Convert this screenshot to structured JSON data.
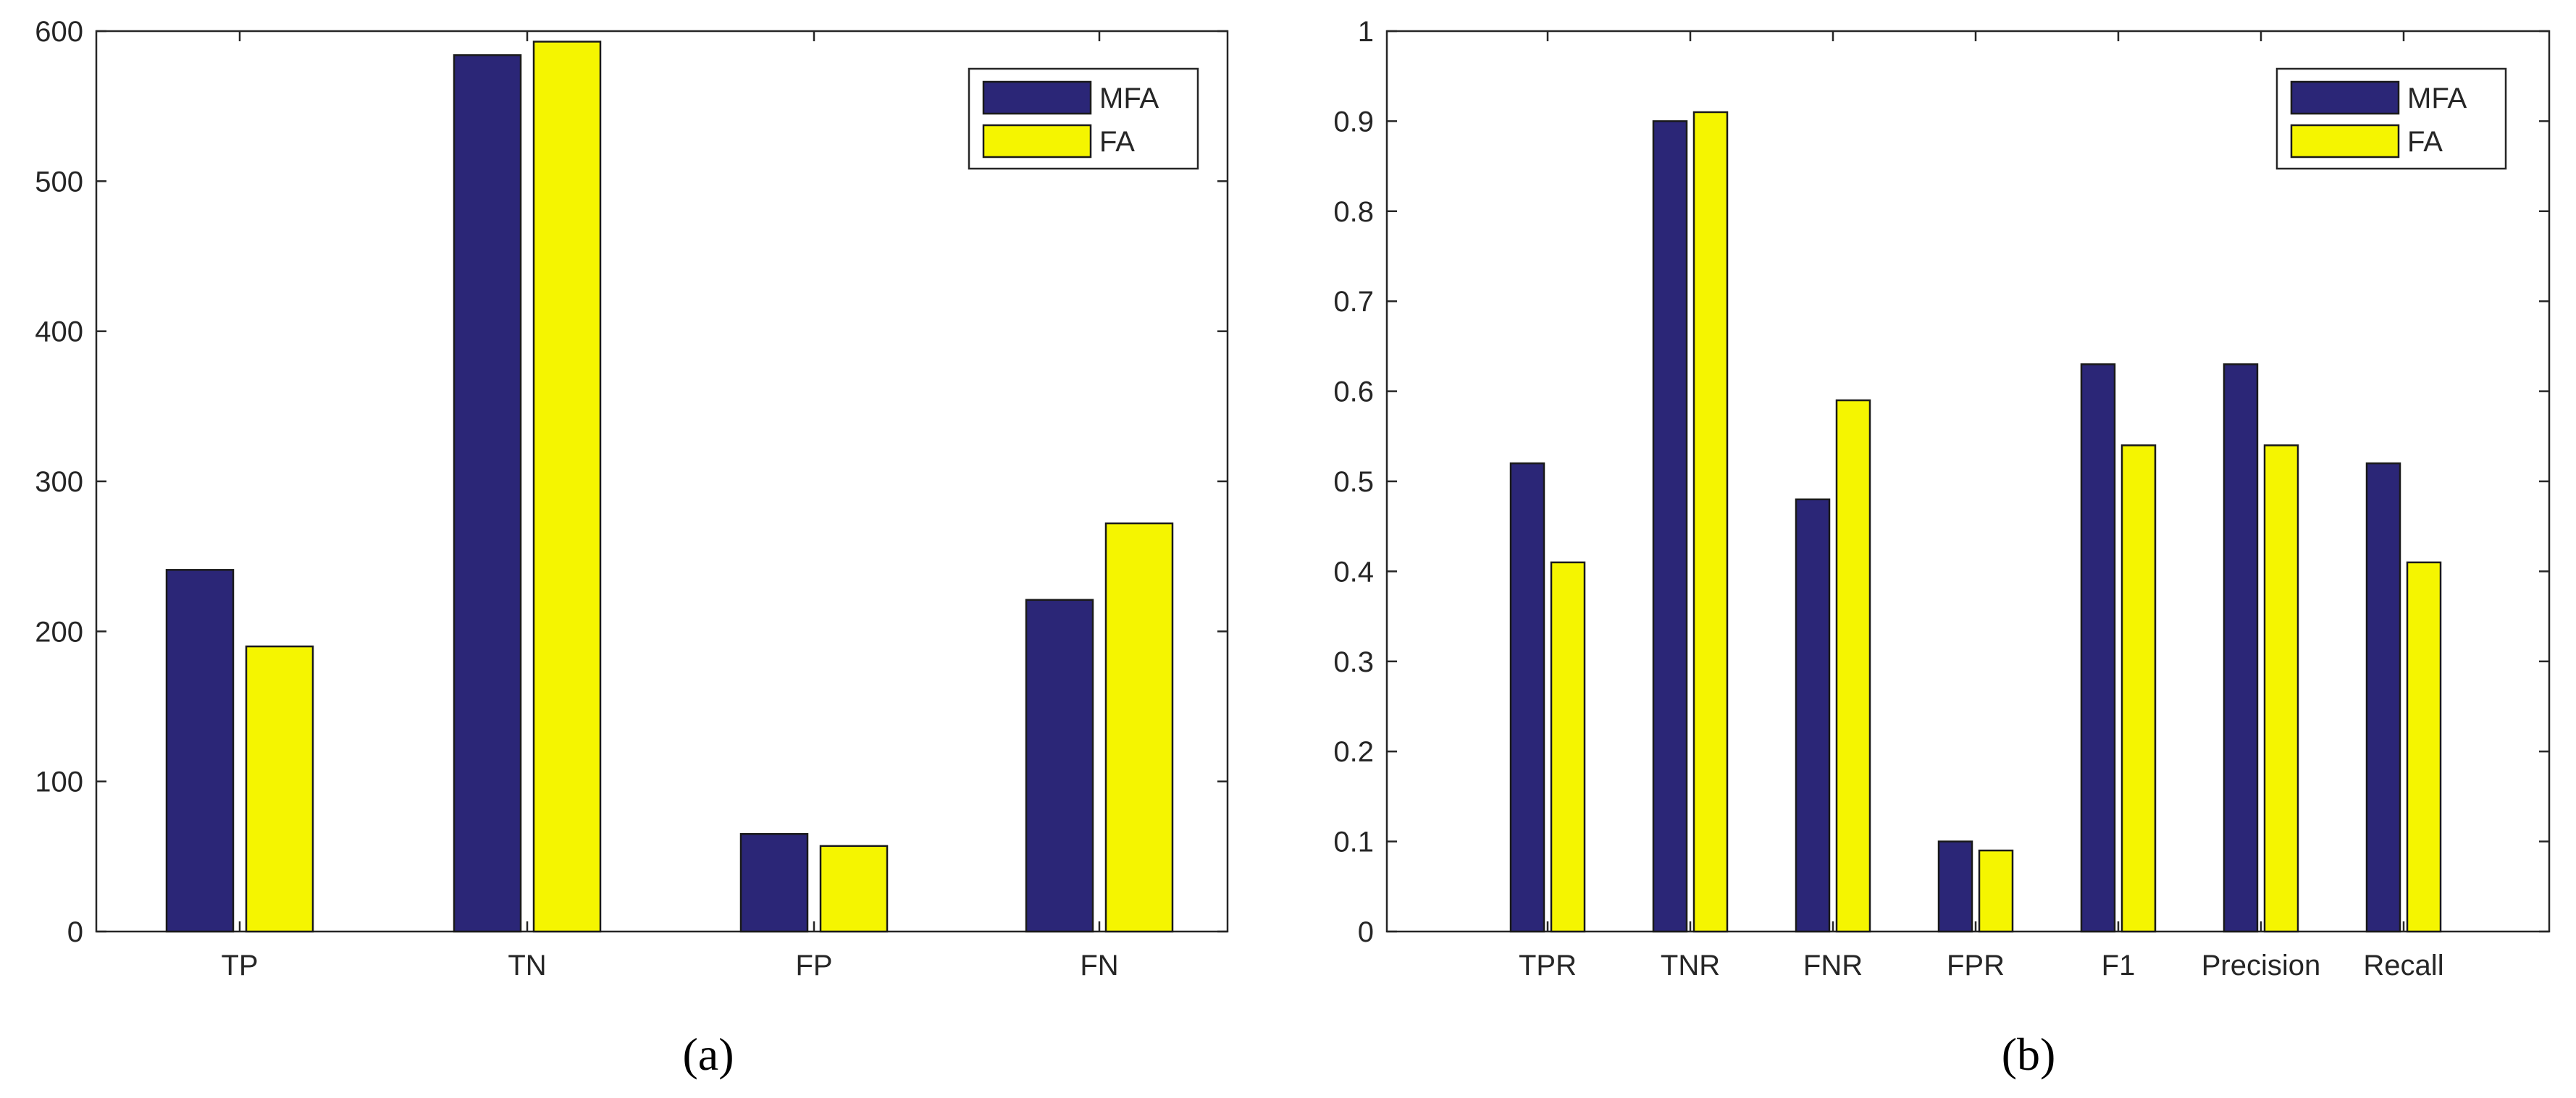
{
  "colors": {
    "mfa": "#2b2677",
    "fa": "#f5f500",
    "axis": "#262626",
    "edge": "#1a1a1a"
  },
  "chart_data": [
    {
      "type": "bar",
      "panel_label": "(a)",
      "categories": [
        "TP",
        "TN",
        "FP",
        "FN"
      ],
      "series": [
        {
          "name": "MFA",
          "values": [
            241,
            584,
            65,
            221
          ]
        },
        {
          "name": "FA",
          "values": [
            190,
            593,
            57,
            272
          ]
        }
      ],
      "ylim": [
        0,
        600
      ],
      "yticks": [
        0,
        100,
        200,
        300,
        400,
        500,
        600
      ],
      "ytick_labels": [
        "0",
        "100",
        "200",
        "300",
        "400",
        "500",
        "600"
      ],
      "legend": "top-right",
      "grid": false
    },
    {
      "type": "bar",
      "panel_label": "(b)",
      "categories": [
        "TPR",
        "TNR",
        "FNR",
        "FPR",
        "F1",
        "Precision",
        "Recall"
      ],
      "series": [
        {
          "name": "MFA",
          "values": [
            0.52,
            0.9,
            0.48,
            0.1,
            0.63,
            0.63,
            0.52
          ]
        },
        {
          "name": "FA",
          "values": [
            0.41,
            0.91,
            0.59,
            0.09,
            0.54,
            0.54,
            0.41
          ]
        }
      ],
      "ylim": [
        0,
        1
      ],
      "yticks": [
        0,
        0.1,
        0.2,
        0.3,
        0.4,
        0.5,
        0.6,
        0.7,
        0.8,
        0.9,
        1
      ],
      "ytick_labels": [
        "0",
        "0.1",
        "0.2",
        "0.3",
        "0.4",
        "0.5",
        "0.6",
        "0.7",
        "0.8",
        "0.9",
        "1"
      ],
      "legend": "top-right",
      "grid": false
    }
  ]
}
